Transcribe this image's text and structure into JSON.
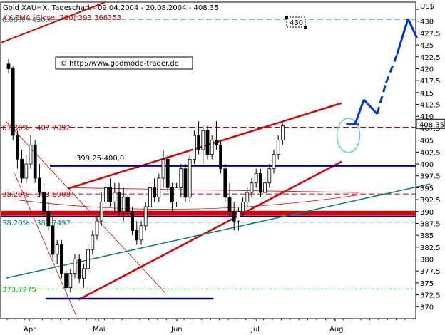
{
  "header": {
    "title": "Gold XAU=X, Tageschart - 09.04.2004 - 20.08.2004 - 408.35",
    "ema_label": "XX EMA [Close, 200]:393.366353"
  },
  "watermark": "© http://www.godmode-trader.de",
  "callout_label": "430",
  "resistance_label": "399,25-400,0",
  "price_tag": "408.35",
  "axis_top_label": "US$",
  "chart_data": {
    "type": "candlestick",
    "title": "Gold XAU=X, Tageschart - 09.04.2004 - 20.08.2004 - 408.35",
    "y_axis": {
      "range": [
        367.5,
        434
      ],
      "ticks": [
        370,
        372.5,
        375,
        377.5,
        380,
        382.5,
        385,
        387.5,
        390,
        392.5,
        395,
        397.5,
        400,
        402.5,
        405,
        407.5,
        410,
        412.5,
        415,
        417.5,
        420,
        422.5,
        425,
        427.5,
        430,
        432.5
      ],
      "tick_labels": [
        "370",
        "372.5",
        "375",
        "377.5",
        "380",
        "382.5",
        "385",
        "387.5",
        "390",
        "392.5",
        "395",
        "397.5",
        "400",
        "402.5",
        "405",
        "407.5",
        "410",
        "412.5",
        "415",
        "417.5",
        "420",
        "422.5",
        "425",
        "427.5",
        "430",
        "US$"
      ]
    },
    "x_axis": {
      "months": [
        "Apr",
        "Mai",
        "Jun",
        "Jul",
        "Aug"
      ]
    },
    "fib_levels": [
      {
        "label": "0.00% - 430.4",
        "value": 430.4,
        "color": "#008080"
      },
      {
        "label": "61.80% - 407.7092",
        "value": 407.7092,
        "color": "#cc0000"
      },
      {
        "label": "38.20% - 393.6908",
        "value": 393.6908,
        "color": "#cc0000"
      },
      {
        "label": "38.20% - 387.7497",
        "value": 387.7497,
        "color": "#008080"
      },
      {
        "label": "373.7275",
        "value": 373.7275,
        "color": "#00aa00"
      }
    ],
    "support_zone": [
      389.5,
      390.0
    ],
    "candles": [
      {
        "o": 421,
        "h": 422,
        "l": 419,
        "c": 420
      },
      {
        "o": 420,
        "h": 420.5,
        "l": 405,
        "c": 406
      },
      {
        "o": 406,
        "h": 407,
        "l": 399,
        "c": 401
      },
      {
        "o": 401,
        "h": 403,
        "l": 396,
        "c": 397
      },
      {
        "o": 397,
        "h": 402,
        "l": 396,
        "c": 400
      },
      {
        "o": 400,
        "h": 406,
        "l": 399,
        "c": 404
      },
      {
        "o": 404,
        "h": 405,
        "l": 396,
        "c": 397
      },
      {
        "o": 397,
        "h": 400,
        "l": 393,
        "c": 394
      },
      {
        "o": 394,
        "h": 396,
        "l": 389,
        "c": 390
      },
      {
        "o": 390,
        "h": 392,
        "l": 386,
        "c": 387
      },
      {
        "o": 387,
        "h": 389,
        "l": 380,
        "c": 381
      },
      {
        "o": 381,
        "h": 384,
        "l": 379,
        "c": 383
      },
      {
        "o": 383,
        "h": 384,
        "l": 376,
        "c": 377
      },
      {
        "o": 377,
        "h": 379,
        "l": 371.5,
        "c": 374
      },
      {
        "o": 374,
        "h": 378,
        "l": 373,
        "c": 377
      },
      {
        "o": 377,
        "h": 381,
        "l": 376,
        "c": 380
      },
      {
        "o": 380,
        "h": 381,
        "l": 375,
        "c": 376
      },
      {
        "o": 376,
        "h": 379,
        "l": 374,
        "c": 378
      },
      {
        "o": 378,
        "h": 383,
        "l": 377,
        "c": 382
      },
      {
        "o": 382,
        "h": 386,
        "l": 381,
        "c": 385
      },
      {
        "o": 385,
        "h": 389,
        "l": 384,
        "c": 388
      },
      {
        "o": 388,
        "h": 394,
        "l": 387,
        "c": 392
      },
      {
        "o": 392,
        "h": 396,
        "l": 390,
        "c": 395
      },
      {
        "o": 395,
        "h": 397,
        "l": 391,
        "c": 392
      },
      {
        "o": 392,
        "h": 396,
        "l": 390,
        "c": 394
      },
      {
        "o": 394,
        "h": 396,
        "l": 389,
        "c": 390
      },
      {
        "o": 390,
        "h": 395,
        "l": 388,
        "c": 393
      },
      {
        "o": 393,
        "h": 395,
        "l": 389,
        "c": 390
      },
      {
        "o": 390,
        "h": 391,
        "l": 385,
        "c": 386
      },
      {
        "o": 386,
        "h": 388,
        "l": 383,
        "c": 384
      },
      {
        "o": 384,
        "h": 388,
        "l": 383,
        "c": 387
      },
      {
        "o": 387,
        "h": 392,
        "l": 386,
        "c": 391
      },
      {
        "o": 391,
        "h": 396,
        "l": 390,
        "c": 395
      },
      {
        "o": 395,
        "h": 397,
        "l": 392,
        "c": 393
      },
      {
        "o": 393,
        "h": 398,
        "l": 392,
        "c": 397
      },
      {
        "o": 397,
        "h": 403,
        "l": 395,
        "c": 401
      },
      {
        "o": 401,
        "h": 402,
        "l": 394,
        "c": 395
      },
      {
        "o": 395,
        "h": 396,
        "l": 390,
        "c": 392
      },
      {
        "o": 392,
        "h": 396,
        "l": 391,
        "c": 395
      },
      {
        "o": 395,
        "h": 400,
        "l": 393,
        "c": 399
      },
      {
        "o": 399,
        "h": 400,
        "l": 392,
        "c": 393
      },
      {
        "o": 393,
        "h": 402,
        "l": 392,
        "c": 401
      },
      {
        "o": 401,
        "h": 407,
        "l": 400,
        "c": 406
      },
      {
        "o": 406,
        "h": 409,
        "l": 402,
        "c": 403
      },
      {
        "o": 403,
        "h": 408,
        "l": 400,
        "c": 407
      },
      {
        "o": 407,
        "h": 408,
        "l": 401,
        "c": 402
      },
      {
        "o": 402,
        "h": 406,
        "l": 401,
        "c": 405
      },
      {
        "o": 405,
        "h": 409,
        "l": 403,
        "c": 404
      },
      {
        "o": 404,
        "h": 405,
        "l": 398,
        "c": 399
      },
      {
        "o": 399,
        "h": 400,
        "l": 392,
        "c": 393
      },
      {
        "o": 393,
        "h": 396,
        "l": 389,
        "c": 390
      },
      {
        "o": 390,
        "h": 392,
        "l": 386,
        "c": 388
      },
      {
        "o": 388,
        "h": 391,
        "l": 386,
        "c": 390
      },
      {
        "o": 390,
        "h": 393,
        "l": 389,
        "c": 392
      },
      {
        "o": 392,
        "h": 395,
        "l": 391,
        "c": 394
      },
      {
        "o": 394,
        "h": 397,
        "l": 393,
        "c": 396
      },
      {
        "o": 396,
        "h": 399,
        "l": 395,
        "c": 398
      },
      {
        "o": 398,
        "h": 399,
        "l": 393,
        "c": 394
      },
      {
        "o": 394,
        "h": 397,
        "l": 393,
        "c": 396
      },
      {
        "o": 396,
        "h": 400,
        "l": 395,
        "c": 399
      },
      {
        "o": 399,
        "h": 403,
        "l": 398,
        "c": 402
      },
      {
        "o": 402,
        "h": 406,
        "l": 401,
        "c": 405
      },
      {
        "o": 405,
        "h": 408.5,
        "l": 404,
        "c": 408
      }
    ],
    "forecast_path": [
      {
        "i": 66,
        "v": 408.3
      },
      {
        "i": 68,
        "v": 408.3
      },
      {
        "i": 70,
        "v": 413.5
      },
      {
        "i": 73,
        "v": 410.5
      },
      {
        "i": 75,
        "v": 417
      },
      {
        "i": 77.5,
        "v": 423
      },
      {
        "i": 80,
        "v": 430.5
      },
      {
        "i": 82,
        "v": 426.5
      }
    ]
  }
}
